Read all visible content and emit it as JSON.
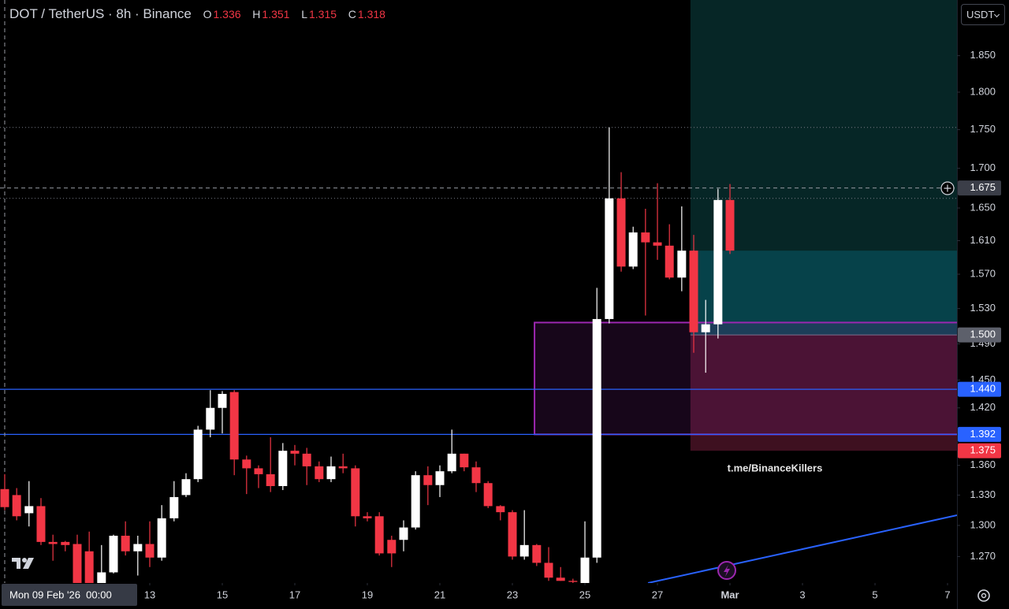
{
  "chart_data": {
    "type": "candlestick",
    "title": "DOT / TetherUS · 8h · Binance",
    "legend": {
      "labels": [
        "O",
        "H",
        "L",
        "C"
      ],
      "values": [
        1.336,
        1.351,
        1.315,
        1.318
      ]
    },
    "currency": "USDT",
    "watermark": "t.me/BinanceKillers",
    "up_color": "#ffffff",
    "down_color": "#f23645",
    "x": [
      9,
      9.33,
      9.67,
      10,
      10.33,
      10.67,
      11,
      11.33,
      11.67,
      12,
      12.33,
      12.67,
      13,
      13.33,
      13.67,
      14,
      14.33,
      14.67,
      15,
      15.33,
      15.67,
      16,
      16.33,
      16.67,
      17,
      17.33,
      17.67,
      18,
      18.33,
      18.67,
      19,
      19.33,
      19.67,
      20,
      20.33,
      20.67,
      21,
      21.33,
      21.67,
      22,
      22.33,
      22.67,
      23,
      23.33,
      23.67,
      24,
      24.33,
      24.67,
      25,
      25.33,
      25.67,
      26,
      26.33,
      26.67,
      27,
      27.33,
      27.67,
      28,
      28.33,
      28.67,
      29
    ],
    "open": [
      1.336,
      1.33,
      1.312,
      1.319,
      1.284,
      1.284,
      1.282,
      1.275,
      1.245,
      1.255,
      1.29,
      1.275,
      1.282,
      1.269,
      1.307,
      1.33,
      1.346,
      1.397,
      1.42,
      1.437,
      1.366,
      1.357,
      1.351,
      1.339,
      1.375,
      1.372,
      1.359,
      1.346,
      1.359,
      1.357,
      1.309,
      1.309,
      1.286,
      1.286,
      1.298,
      1.35,
      1.34,
      1.354,
      1.372,
      1.358,
      1.342,
      1.319,
      1.313,
      1.27,
      1.281,
      1.264,
      1.25,
      1.247,
      1.245,
      1.269,
      1.518,
      1.662,
      1.579,
      1.62,
      1.608,
      1.604,
      1.566,
      1.598,
      1.503,
      1.512,
      1.66
    ],
    "high": [
      1.351,
      1.337,
      1.344,
      1.327,
      1.291,
      1.285,
      1.291,
      1.294,
      1.281,
      1.291,
      1.304,
      1.29,
      1.304,
      1.32,
      1.344,
      1.352,
      1.401,
      1.439,
      1.438,
      1.439,
      1.37,
      1.36,
      1.389,
      1.383,
      1.381,
      1.378,
      1.364,
      1.369,
      1.372,
      1.36,
      1.313,
      1.313,
      1.29,
      1.305,
      1.354,
      1.359,
      1.36,
      1.397,
      1.372,
      1.364,
      1.344,
      1.32,
      1.315,
      1.315,
      1.282,
      1.279,
      1.26,
      1.249,
      1.304,
      1.554,
      1.753,
      1.695,
      1.627,
      1.649,
      1.681,
      1.63,
      1.652,
      1.617,
      1.54,
      1.674,
      1.68
    ],
    "low": [
      1.315,
      1.305,
      1.299,
      1.281,
      1.266,
      1.275,
      1.242,
      1.242,
      1.242,
      1.254,
      1.271,
      1.252,
      1.26,
      1.266,
      1.304,
      1.328,
      1.343,
      1.389,
      1.393,
      1.35,
      1.331,
      1.337,
      1.333,
      1.335,
      1.36,
      1.34,
      1.343,
      1.343,
      1.352,
      1.299,
      1.304,
      1.271,
      1.26,
      1.275,
      1.296,
      1.32,
      1.328,
      1.352,
      1.354,
      1.333,
      1.317,
      1.305,
      1.267,
      1.267,
      1.261,
      1.247,
      1.247,
      1.245,
      1.245,
      1.264,
      1.513,
      1.573,
      1.576,
      1.522,
      1.587,
      1.564,
      1.55,
      1.48,
      1.458,
      1.496,
      1.594
    ],
    "close": [
      1.318,
      1.309,
      1.319,
      1.284,
      1.282,
      1.281,
      1.245,
      1.245,
      1.255,
      1.29,
      1.275,
      1.282,
      1.269,
      1.307,
      1.328,
      1.346,
      1.397,
      1.42,
      1.435,
      1.366,
      1.357,
      1.351,
      1.339,
      1.375,
      1.372,
      1.359,
      1.346,
      1.359,
      1.357,
      1.309,
      1.307,
      1.273,
      1.273,
      1.298,
      1.35,
      1.34,
      1.354,
      1.372,
      1.358,
      1.342,
      1.319,
      1.313,
      1.27,
      1.281,
      1.264,
      1.25,
      1.247,
      1.246,
      1.269,
      1.518,
      1.662,
      1.579,
      1.62,
      1.608,
      1.604,
      1.566,
      1.598,
      1.503,
      1.512,
      1.66,
      1.598
    ],
    "log_scale": true,
    "ylim": [
      1.245,
      1.929
    ],
    "yticks": [
      {
        "value": 1.85,
        "label": "1.850"
      },
      {
        "value": 1.8,
        "label": "1.800"
      },
      {
        "value": 1.75,
        "label": "1.750"
      },
      {
        "value": 1.7,
        "label": "1.700"
      },
      {
        "value": 1.65,
        "label": "1.650"
      },
      {
        "value": 1.61,
        "label": "1.610"
      },
      {
        "value": 1.57,
        "label": "1.570"
      },
      {
        "value": 1.53,
        "label": "1.530"
      },
      {
        "value": 1.49,
        "label": "1.490"
      },
      {
        "value": 1.45,
        "label": "1.450"
      },
      {
        "value": 1.42,
        "label": "1.420"
      },
      {
        "value": 1.36,
        "label": "1.360"
      },
      {
        "value": 1.33,
        "label": "1.330"
      },
      {
        "value": 1.3,
        "label": "1.300"
      },
      {
        "value": 1.27,
        "label": "1.270"
      }
    ],
    "xlim": [
      8.87,
      35.26
    ],
    "xticks": [
      13,
      15,
      17,
      19,
      21,
      23,
      25,
      27,
      {
        "value": 29,
        "label": "Mar"
      },
      {
        "value": 31,
        "label": "3"
      },
      {
        "value": 33,
        "label": "5"
      },
      {
        "value": 35,
        "label": "7"
      }
    ],
    "crosshair": {
      "x": {
        "value": 9,
        "label": "Mon 09 Feb '26  00:00"
      },
      "y": {
        "value": 1.675,
        "label": "1.675"
      }
    },
    "levels": [
      {
        "value": 1.44,
        "label": "1.440",
        "color": "#2962ff"
      },
      {
        "value": 1.392,
        "label": "1.392",
        "color": "#2962ff"
      }
    ],
    "dotted_levels": [
      1.753,
      1.662
    ],
    "zone": {
      "x": 23.61,
      "top": 1.514,
      "bottom": 1.392,
      "color": "#9c27b0"
    },
    "position": {
      "x": 27.91,
      "entry": {
        "value": 1.5,
        "label": "1.500"
      },
      "stop": {
        "value": 1.375,
        "label": "1.375"
      }
    },
    "trendline": {
      "x": [
        26.74,
        35.26
      ],
      "values": [
        1.245,
        1.31
      ],
      "color": "#2962ff"
    }
  }
}
